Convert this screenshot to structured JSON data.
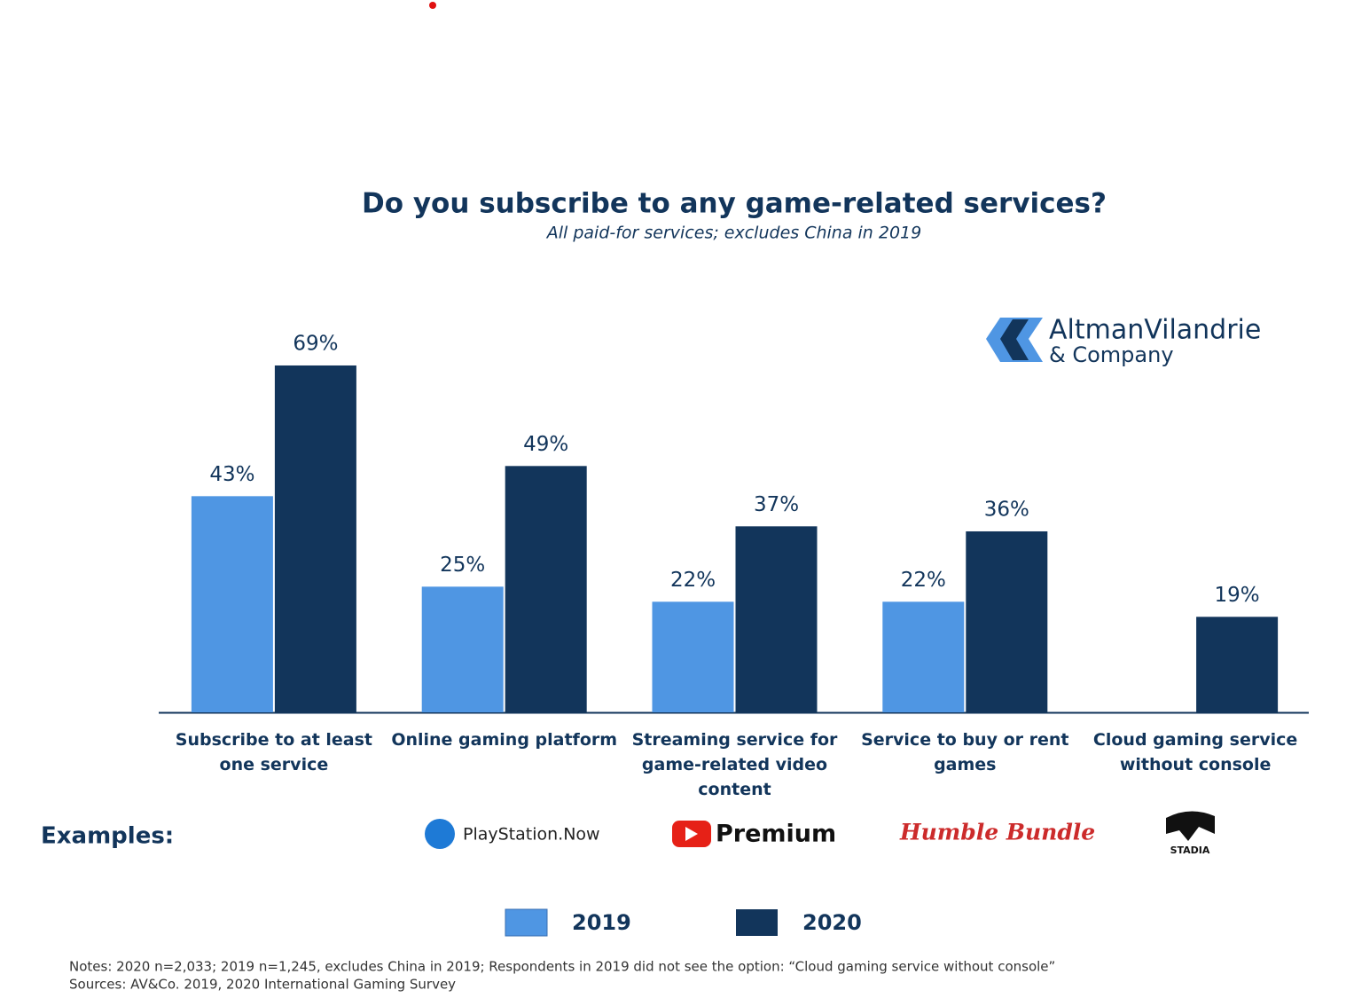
{
  "chart_data": {
    "type": "bar",
    "title": "Do you subscribe to any game-related services?",
    "subtitle": "All paid-for services; excludes China in 2019",
    "categories": [
      "Subscribe to at least one service",
      "Online gaming platform",
      "Streaming service for game-related video content",
      "Service to buy or rent games",
      "Cloud gaming service without console"
    ],
    "series": [
      {
        "name": "2019",
        "color": "#4f96e3",
        "values": [
          43,
          25,
          22,
          22,
          null
        ],
        "value_labels": [
          "43%",
          "25%",
          "22%",
          "22%",
          null
        ]
      },
      {
        "name": "2020",
        "color": "#12355b",
        "values": [
          69,
          49,
          37,
          36,
          19
        ],
        "value_labels": [
          "69%",
          "49%",
          "37%",
          "36%",
          "19%"
        ]
      }
    ],
    "logo": {
      "name": "AltmanVilandrie",
      "sub": "& Company"
    },
    "examples": {
      "label": "Examples:",
      "items": [
        "PlayStation.Now",
        "Premium",
        "Humble Bundle",
        "STADIA"
      ]
    },
    "notes": "Notes: 2020 n=2,033; 2019 n=1,245, excludes China in 2019; Respondents in 2019 did not see the option: “Cloud gaming service without console”",
    "sources": "Sources: AV&Co. 2019, 2020 International Gaming Survey"
  }
}
